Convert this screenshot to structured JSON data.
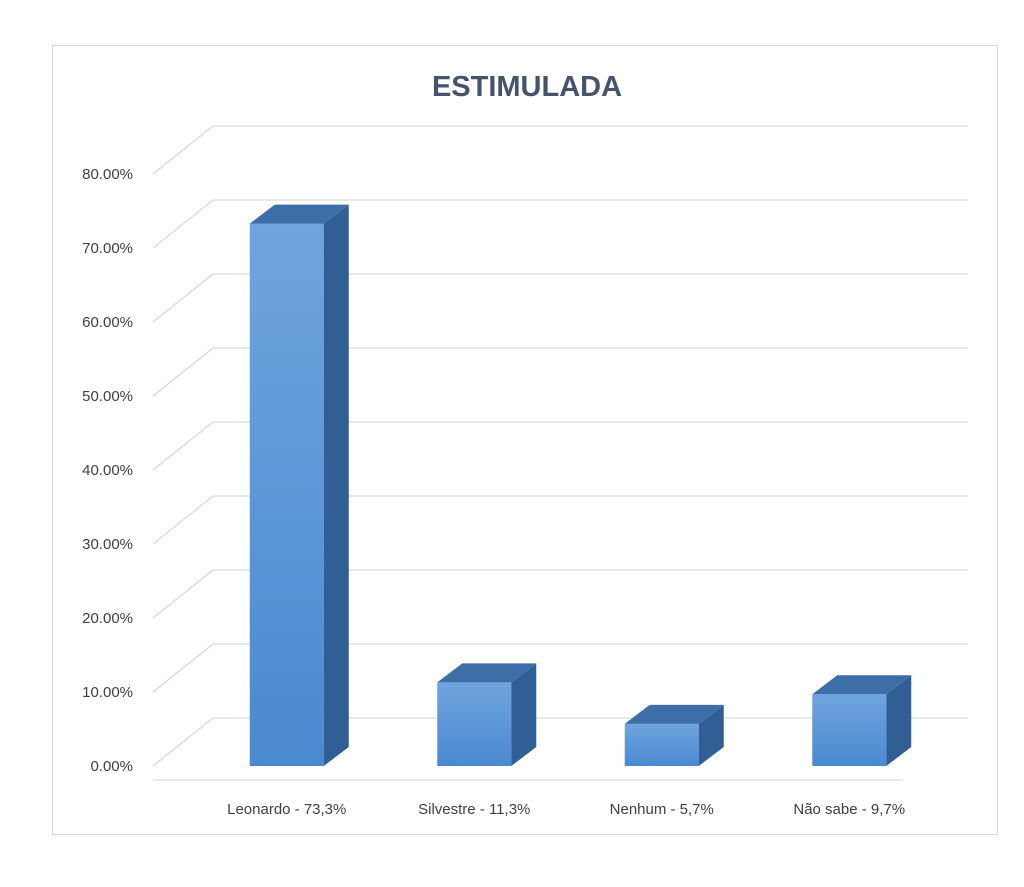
{
  "chart_data": {
    "type": "bar",
    "style": "3d-column",
    "title": "ESTIMULADA",
    "categories": [
      "Leonardo - 73,3%",
      "Silvestre - 11,3%",
      "Nenhum - 5,7%",
      "Não sabe - 9,7%"
    ],
    "values": [
      73.3,
      11.3,
      5.7,
      9.7
    ],
    "value_unit": "percent",
    "yticks": [
      "0.00%",
      "10.00%",
      "20.00%",
      "30.00%",
      "40.00%",
      "50.00%",
      "60.00%",
      "70.00%",
      "80.00%"
    ],
    "ylim": [
      0,
      80
    ],
    "xlabel": "",
    "ylabel": "",
    "grid": true,
    "legend": "none",
    "colors": {
      "bar_front_top": "#6fa5de",
      "bar_front_bottom": "#4a89d0",
      "bar_side": "#2f5f95",
      "bar_top": "#3e6ea8",
      "grid": "#d9d9d9",
      "title": "#44546a",
      "axis_text": "#404040"
    }
  }
}
